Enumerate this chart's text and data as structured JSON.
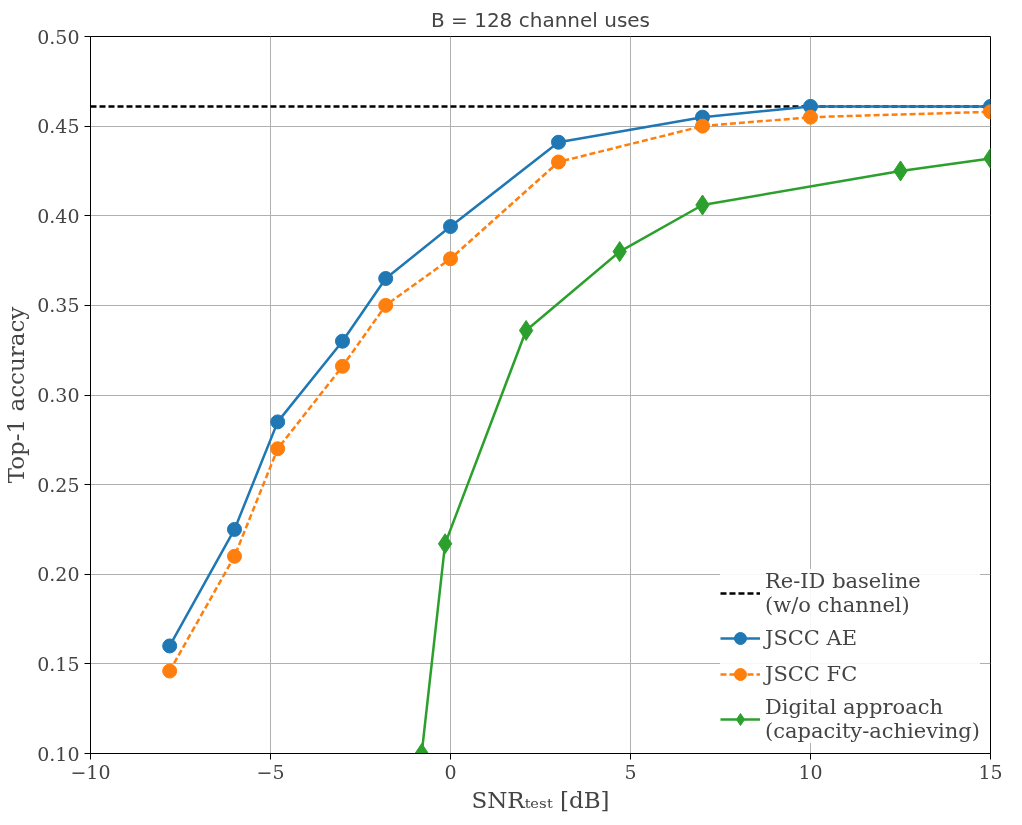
{
  "chart_data": {
    "type": "line",
    "title": "B = 128 channel uses",
    "xlabel": "SNRₜₑₛₜ [dB]",
    "ylabel": "Top-1 accuracy",
    "xlim": [
      -10,
      15
    ],
    "xticks": [
      {
        "value": -10,
        "label": "−10"
      },
      {
        "value": -5,
        "label": "−5"
      },
      0,
      5,
      10,
      15
    ],
    "ylim": [
      0.1,
      0.5
    ],
    "yticks": [
      {
        "value": 0.1,
        "label": "0.10"
      },
      {
        "value": 0.15,
        "label": "0.15"
      },
      {
        "value": 0.2,
        "label": "0.20"
      },
      {
        "value": 0.25,
        "label": "0.25"
      },
      {
        "value": 0.3,
        "label": "0.30"
      },
      {
        "value": 0.35,
        "label": "0.35"
      },
      {
        "value": 0.4,
        "label": "0.40"
      },
      {
        "value": 0.45,
        "label": "0.45"
      },
      {
        "value": 0.5,
        "label": "0.50"
      }
    ],
    "grid": true,
    "legend": "bottom right",
    "series": [
      {
        "name": "Re-ID baseline\n(w/o channel)",
        "color": "#000000",
        "line_style": "dashed",
        "marker": "none",
        "x": [
          -10,
          15
        ],
        "values": [
          0.461,
          0.461
        ]
      },
      {
        "name": "JSCC AE",
        "color": "#1f77b4",
        "line_style": "solid",
        "marker": "circle",
        "x": [
          -7.8,
          -6.0,
          -4.8,
          -3.0,
          -1.8,
          0,
          3.0,
          7.0,
          10.0,
          15
        ],
        "values": [
          0.16,
          0.225,
          0.285,
          0.33,
          0.365,
          0.394,
          0.441,
          0.455,
          0.461,
          0.461
        ]
      },
      {
        "name": "JSCC FC",
        "color": "#ff7f0e",
        "line_style": "dashed",
        "marker": "circle",
        "x": [
          -7.8,
          -6.0,
          -4.8,
          -3.0,
          -1.8,
          0,
          3.0,
          7.0,
          10.0,
          15
        ],
        "values": [
          0.146,
          0.21,
          0.27,
          0.316,
          0.35,
          0.376,
          0.43,
          0.45,
          0.455,
          0.458
        ]
      },
      {
        "name": "Digital approach\n(capacity-achieving)",
        "color": "#2ca02c",
        "line_style": "solid",
        "marker": "diamond",
        "x": [
          -0.8,
          -0.15,
          2.1,
          4.7,
          7.0,
          12.5,
          15
        ],
        "values": [
          0.1,
          0.217,
          0.336,
          0.38,
          0.406,
          0.425,
          0.432
        ]
      }
    ]
  }
}
